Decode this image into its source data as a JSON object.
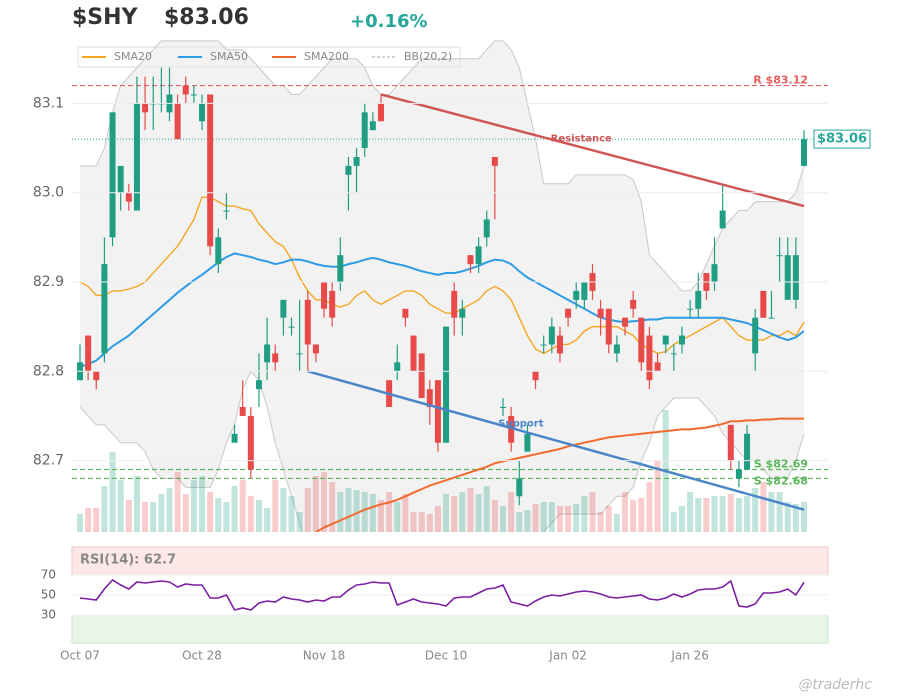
{
  "chart_data": {
    "type": "candlestick",
    "header": {
      "ticker": "$SHY",
      "price": "$83.06",
      "change": "+0.16%"
    },
    "price_line": 83.06,
    "watermark": "@traderhc",
    "categories": [
      "Oct 07",
      null,
      null,
      null,
      null,
      null,
      null,
      null,
      null,
      null,
      null,
      null,
      null,
      null,
      null,
      "Oct 28",
      null,
      null,
      null,
      null,
      null,
      null,
      null,
      null,
      null,
      null,
      null,
      null,
      null,
      null,
      "Nov 18",
      null,
      null,
      null,
      null,
      null,
      null,
      null,
      null,
      null,
      null,
      null,
      null,
      null,
      null,
      "Dec 10",
      null,
      null,
      null,
      null,
      null,
      null,
      null,
      null,
      null,
      null,
      null,
      null,
      null,
      null,
      "Jan 02",
      null,
      null,
      null,
      null,
      null,
      null,
      null,
      null,
      null,
      null,
      null,
      null,
      null,
      null,
      "Jan 26",
      null,
      null,
      null,
      null,
      null,
      null,
      null,
      null,
      null,
      null,
      null,
      null,
      null,
      null
    ],
    "open": [
      82.79,
      82.84,
      82.8,
      82.82,
      82.95,
      83.0,
      83.0,
      82.98,
      83.1,
      83.1,
      83.1,
      83.09,
      83.1,
      83.12,
      83.11,
      83.08,
      83.11,
      82.92,
      82.98,
      82.72,
      82.76,
      82.75,
      82.78,
      82.81,
      82.82,
      82.86,
      82.85,
      82.82,
      82.88,
      82.83,
      82.9,
      82.89,
      82.9,
      83.02,
      83.03,
      83.05,
      83.07,
      83.1,
      82.79,
      82.8,
      82.87,
      82.84,
      82.82,
      82.78,
      82.79,
      82.72,
      82.89,
      82.86,
      82.93,
      82.92,
      82.95,
      83.04,
      82.76,
      82.75,
      82.66,
      82.71,
      82.8,
      82.83,
      82.83,
      82.84,
      82.87,
      82.88,
      82.88,
      82.91,
      82.87,
      82.87,
      82.82,
      82.86,
      82.88,
      82.86,
      82.84,
      82.81,
      82.83,
      82.82,
      82.83,
      82.87,
      82.87,
      82.91,
      82.9,
      82.96,
      82.74,
      82.68,
      82.69,
      82.82,
      82.89,
      82.86,
      82.93,
      82.88,
      82.88,
      83.03
    ],
    "high": [
      82.83,
      82.84,
      82.8,
      82.95,
      83.09,
      83.03,
      83.01,
      83.13,
      83.13,
      83.13,
      83.14,
      83.14,
      83.11,
      83.13,
      83.12,
      83.11,
      83.11,
      82.96,
      83.0,
      82.74,
      82.79,
      82.76,
      82.82,
      82.86,
      82.83,
      82.88,
      82.86,
      82.88,
      82.89,
      82.83,
      82.9,
      82.9,
      82.95,
      83.04,
      83.05,
      83.1,
      83.09,
      83.11,
      82.79,
      82.83,
      82.87,
      82.84,
      82.82,
      82.79,
      82.79,
      82.85,
      82.9,
      82.88,
      82.93,
      82.95,
      82.98,
      83.04,
      82.77,
      82.76,
      82.7,
      82.74,
      82.8,
      82.84,
      82.86,
      82.85,
      82.87,
      82.9,
      82.9,
      82.92,
      82.88,
      82.87,
      82.84,
      82.86,
      82.89,
      82.86,
      82.85,
      82.82,
      82.84,
      82.83,
      82.85,
      82.88,
      82.91,
      82.91,
      82.95,
      83.01,
      82.74,
      82.7,
      82.74,
      82.87,
      82.89,
      82.89,
      82.95,
      82.95,
      82.95,
      83.07
    ],
    "low": [
      82.79,
      82.79,
      82.78,
      82.81,
      82.94,
      82.98,
      82.98,
      82.98,
      83.07,
      83.07,
      83.09,
      83.08,
      83.06,
      83.1,
      83.1,
      83.07,
      82.93,
      82.91,
      82.97,
      82.72,
      82.75,
      82.68,
      82.76,
      82.79,
      82.8,
      82.84,
      82.84,
      82.8,
      82.8,
      82.81,
      82.86,
      82.85,
      82.89,
      82.98,
      83.0,
      83.04,
      83.07,
      83.08,
      82.76,
      82.79,
      82.85,
      82.8,
      82.77,
      82.74,
      82.71,
      82.72,
      82.84,
      82.84,
      82.91,
      82.91,
      82.94,
      82.97,
      82.75,
      82.71,
      82.65,
      82.71,
      82.78,
      82.82,
      82.82,
      82.81,
      82.85,
      82.87,
      82.87,
      82.88,
      82.84,
      82.82,
      82.81,
      82.84,
      82.86,
      82.8,
      82.78,
      82.8,
      82.82,
      82.8,
      82.82,
      82.86,
      82.86,
      82.88,
      82.89,
      82.96,
      82.69,
      82.67,
      82.69,
      82.8,
      82.86,
      82.86,
      82.9,
      82.88,
      82.87,
      83.03
    ],
    "close": [
      82.81,
      82.8,
      82.79,
      82.92,
      83.09,
      83.03,
      82.99,
      83.1,
      83.09,
      83.1,
      83.1,
      83.11,
      83.06,
      83.11,
      83.11,
      83.1,
      82.94,
      82.95,
      82.98,
      82.73,
      82.75,
      82.69,
      82.79,
      82.83,
      82.81,
      82.88,
      82.85,
      82.82,
      82.83,
      82.82,
      82.87,
      82.86,
      82.93,
      83.03,
      83.04,
      83.09,
      83.08,
      83.08,
      82.76,
      82.81,
      82.86,
      82.8,
      82.77,
      82.76,
      82.72,
      82.85,
      82.86,
      82.87,
      82.92,
      82.94,
      82.97,
      83.03,
      82.76,
      82.72,
      82.68,
      82.73,
      82.79,
      82.83,
      82.85,
      82.82,
      82.86,
      82.89,
      82.9,
      82.89,
      82.86,
      82.83,
      82.83,
      82.85,
      82.87,
      82.81,
      82.79,
      82.8,
      82.84,
      82.82,
      82.84,
      82.87,
      82.89,
      82.89,
      82.92,
      82.98,
      82.7,
      82.69,
      82.73,
      82.86,
      82.86,
      82.86,
      82.93,
      82.93,
      82.93,
      83.06
    ],
    "volume": [
      18,
      24,
      24,
      46,
      80,
      52,
      32,
      56,
      30,
      30,
      38,
      44,
      60,
      38,
      52,
      56,
      40,
      34,
      30,
      46,
      52,
      36,
      32,
      24,
      52,
      44,
      36,
      20,
      44,
      56,
      60,
      50,
      40,
      44,
      42,
      40,
      38,
      32,
      40,
      30,
      38,
      20,
      20,
      18,
      26,
      38,
      36,
      40,
      44,
      38,
      46,
      32,
      26,
      40,
      20,
      22,
      28,
      30,
      30,
      26,
      26,
      28,
      36,
      40,
      20,
      26,
      18,
      40,
      32,
      34,
      50,
      72,
      122,
      20,
      26,
      40,
      34,
      34,
      36,
      36,
      38,
      34,
      36,
      44,
      50,
      40,
      40,
      30,
      28,
      30
    ],
    "up_color": "#1f9e83",
    "down_color": "#e84a4a",
    "series": [
      {
        "name": "SMA20",
        "color": "#f5a623",
        "values": [
          82.9,
          82.895,
          82.885,
          82.885,
          82.89,
          82.89,
          82.892,
          82.895,
          82.9,
          82.91,
          82.92,
          82.93,
          82.94,
          82.955,
          82.97,
          82.995,
          82.995,
          82.99,
          82.985,
          82.985,
          82.982,
          82.98,
          82.965,
          82.955,
          82.945,
          82.94,
          82.925,
          82.905,
          82.89,
          82.88,
          82.88,
          82.875,
          82.872,
          82.875,
          82.885,
          82.89,
          82.88,
          82.875,
          82.88,
          82.885,
          82.89,
          82.89,
          82.885,
          82.875,
          82.87,
          82.865,
          82.865,
          82.87,
          82.875,
          82.88,
          82.89,
          82.895,
          82.89,
          82.88,
          82.86,
          82.84,
          82.825,
          82.82,
          82.825,
          82.83,
          82.83,
          82.835,
          82.845,
          82.85,
          82.85,
          82.85,
          82.85,
          82.845,
          82.84,
          82.83,
          82.825,
          82.82,
          82.822,
          82.83,
          82.835,
          82.84,
          82.845,
          82.85,
          82.855,
          82.86,
          82.85,
          82.84,
          82.835,
          82.835,
          82.835,
          82.84,
          82.84,
          82.845,
          82.84,
          82.855
        ]
      },
      {
        "name": "SMA50",
        "color": "#2e9be6",
        "values": [
          82.805,
          82.808,
          82.812,
          82.82,
          82.828,
          82.834,
          82.84,
          82.848,
          82.856,
          82.864,
          82.872,
          82.88,
          82.888,
          82.895,
          82.902,
          82.908,
          82.915,
          82.922,
          82.928,
          82.932,
          82.93,
          82.928,
          82.925,
          82.923,
          82.92,
          82.922,
          82.925,
          82.925,
          82.923,
          82.92,
          82.918,
          82.917,
          82.917,
          82.92,
          82.922,
          82.925,
          82.927,
          82.925,
          82.922,
          82.92,
          82.918,
          82.915,
          82.912,
          82.91,
          82.908,
          82.91,
          82.91,
          82.912,
          82.915,
          82.918,
          82.922,
          82.925,
          82.924,
          82.92,
          82.912,
          82.905,
          82.9,
          82.895,
          82.89,
          82.885,
          82.88,
          82.875,
          82.87,
          82.865,
          82.86,
          82.858,
          82.856,
          82.855,
          82.856,
          82.857,
          82.858,
          82.858,
          82.86,
          82.86,
          82.86,
          82.86,
          82.86,
          82.86,
          82.86,
          82.86,
          82.858,
          82.856,
          82.854,
          82.85,
          82.846,
          82.842,
          82.838,
          82.835,
          82.838,
          82.845
        ]
      },
      {
        "name": "SMA200",
        "color": "#f26a2e",
        "values": [
          null,
          null,
          null,
          null,
          null,
          null,
          null,
          null,
          null,
          null,
          null,
          null,
          null,
          null,
          null,
          null,
          null,
          null,
          null,
          null,
          null,
          null,
          null,
          null,
          null,
          null,
          null,
          null,
          null,
          82.62,
          82.625,
          82.629,
          82.633,
          82.637,
          82.641,
          82.645,
          82.648,
          82.651,
          82.653,
          82.656,
          82.66,
          82.664,
          82.668,
          82.672,
          82.675,
          82.678,
          82.681,
          82.684,
          82.687,
          82.69,
          82.693,
          82.697,
          82.699,
          82.701,
          82.703,
          82.705,
          82.707,
          82.709,
          82.711,
          82.713,
          82.716,
          82.718,
          82.72,
          82.722,
          82.724,
          82.726,
          82.727,
          82.728,
          82.729,
          82.73,
          82.731,
          82.732,
          82.733,
          82.734,
          82.735,
          82.735,
          82.736,
          82.737,
          82.739,
          82.741,
          82.744,
          82.744,
          82.745,
          82.745,
          82.746,
          82.746,
          82.747,
          82.747,
          82.747,
          82.747
        ]
      }
    ],
    "bollinger": {
      "name": "BB(20,2)",
      "color": "#c8c8c8",
      "upper": [
        83.03,
        83.03,
        83.03,
        83.05,
        83.09,
        83.12,
        83.13,
        83.14,
        83.15,
        83.16,
        83.17,
        83.17,
        83.17,
        83.17,
        83.17,
        83.17,
        83.17,
        83.17,
        83.16,
        83.16,
        83.16,
        83.15,
        83.14,
        83.13,
        83.12,
        83.12,
        83.11,
        83.11,
        83.12,
        83.13,
        83.14,
        83.15,
        83.15,
        83.15,
        83.15,
        83.14,
        83.12,
        83.11,
        83.11,
        83.12,
        83.13,
        83.14,
        83.15,
        83.15,
        83.15,
        83.15,
        83.15,
        83.15,
        83.15,
        83.15,
        83.16,
        83.17,
        83.17,
        83.16,
        83.14,
        83.1,
        83.06,
        83.01,
        83.01,
        83.01,
        83.01,
        83.02,
        83.02,
        83.02,
        83.02,
        83.02,
        83.02,
        83.02,
        83.015,
        82.99,
        82.93,
        82.92,
        82.91,
        82.9,
        82.89,
        82.89,
        82.9,
        82.92,
        82.94,
        82.96,
        82.97,
        82.98,
        82.98,
        82.99,
        82.99,
        82.99,
        82.99,
        82.99,
        83.0,
        83.03
      ],
      "lower": [
        82.76,
        82.75,
        82.74,
        82.74,
        82.73,
        82.72,
        82.72,
        82.72,
        82.71,
        82.69,
        82.68,
        82.68,
        82.68,
        82.67,
        82.67,
        82.67,
        82.67,
        82.69,
        82.72,
        82.74,
        82.78,
        82.8,
        82.79,
        82.76,
        82.72,
        82.69,
        82.66,
        82.63,
        82.6,
        82.58,
        82.58,
        82.59,
        82.6,
        82.6,
        82.59,
        82.58,
        82.57,
        82.57,
        82.57,
        82.58,
        82.58,
        82.58,
        82.58,
        82.58,
        82.58,
        82.58,
        82.58,
        82.59,
        82.6,
        82.6,
        82.6,
        82.59,
        82.58,
        82.57,
        82.57,
        82.58,
        82.6,
        82.62,
        82.63,
        82.64,
        82.64,
        82.64,
        82.64,
        82.64,
        82.64,
        82.65,
        82.66,
        82.66,
        82.67,
        82.7,
        82.72,
        82.75,
        82.76,
        82.77,
        82.77,
        82.77,
        82.77,
        82.76,
        82.75,
        82.73,
        82.72,
        82.71,
        82.7,
        82.7,
        82.69,
        82.68,
        82.68,
        82.68,
        82.7,
        82.73
      ]
    },
    "levels": [
      {
        "label": "R $83.12",
        "value": 83.12,
        "color": "#e86060"
      },
      {
        "label": "S $82.69",
        "value": 82.69,
        "color": "#5cb85c"
      },
      {
        "label": "S $82.68",
        "value": 82.68,
        "color": "#5cb85c"
      }
    ],
    "trendlines": [
      {
        "label": "Resistance",
        "start": [
          37,
          83.11
        ],
        "end": [
          89,
          82.985
        ],
        "color": "#d05555"
      },
      {
        "label": "Support",
        "start": [
          28,
          82.8
        ],
        "end": [
          89,
          82.645
        ],
        "color": "#4a86c8"
      }
    ],
    "ylim": [
      82.62,
      83.171
    ],
    "yticks": [
      82.7,
      82.8,
      82.9,
      {
        "value": 83,
        "label": "83.0"
      },
      83.1
    ],
    "grid": true,
    "rsi": {
      "label": "RSI(14): 62.7",
      "color": "#7b1fa2",
      "ylim": [
        2,
        98
      ],
      "yticks": [
        30,
        50,
        70
      ],
      "values": [
        47,
        46,
        45,
        56,
        65,
        60,
        56,
        63,
        62,
        63,
        64,
        63,
        58,
        61,
        60,
        60,
        47,
        47,
        50,
        35,
        37,
        35,
        42,
        44,
        43,
        48,
        46,
        45,
        43,
        45,
        44,
        48,
        48,
        55,
        60,
        61,
        63,
        62,
        62,
        40,
        43,
        46,
        43,
        42,
        41,
        39,
        47,
        48,
        48,
        52,
        56,
        57,
        60,
        43,
        41,
        39,
        44,
        48,
        50,
        49,
        51,
        53,
        54,
        53,
        51,
        48,
        47,
        48,
        49,
        50,
        46,
        45,
        47,
        51,
        48,
        51,
        55,
        56,
        56,
        58,
        64,
        39,
        38,
        41,
        52,
        52,
        53,
        56,
        50,
        62.7
      ]
    }
  }
}
